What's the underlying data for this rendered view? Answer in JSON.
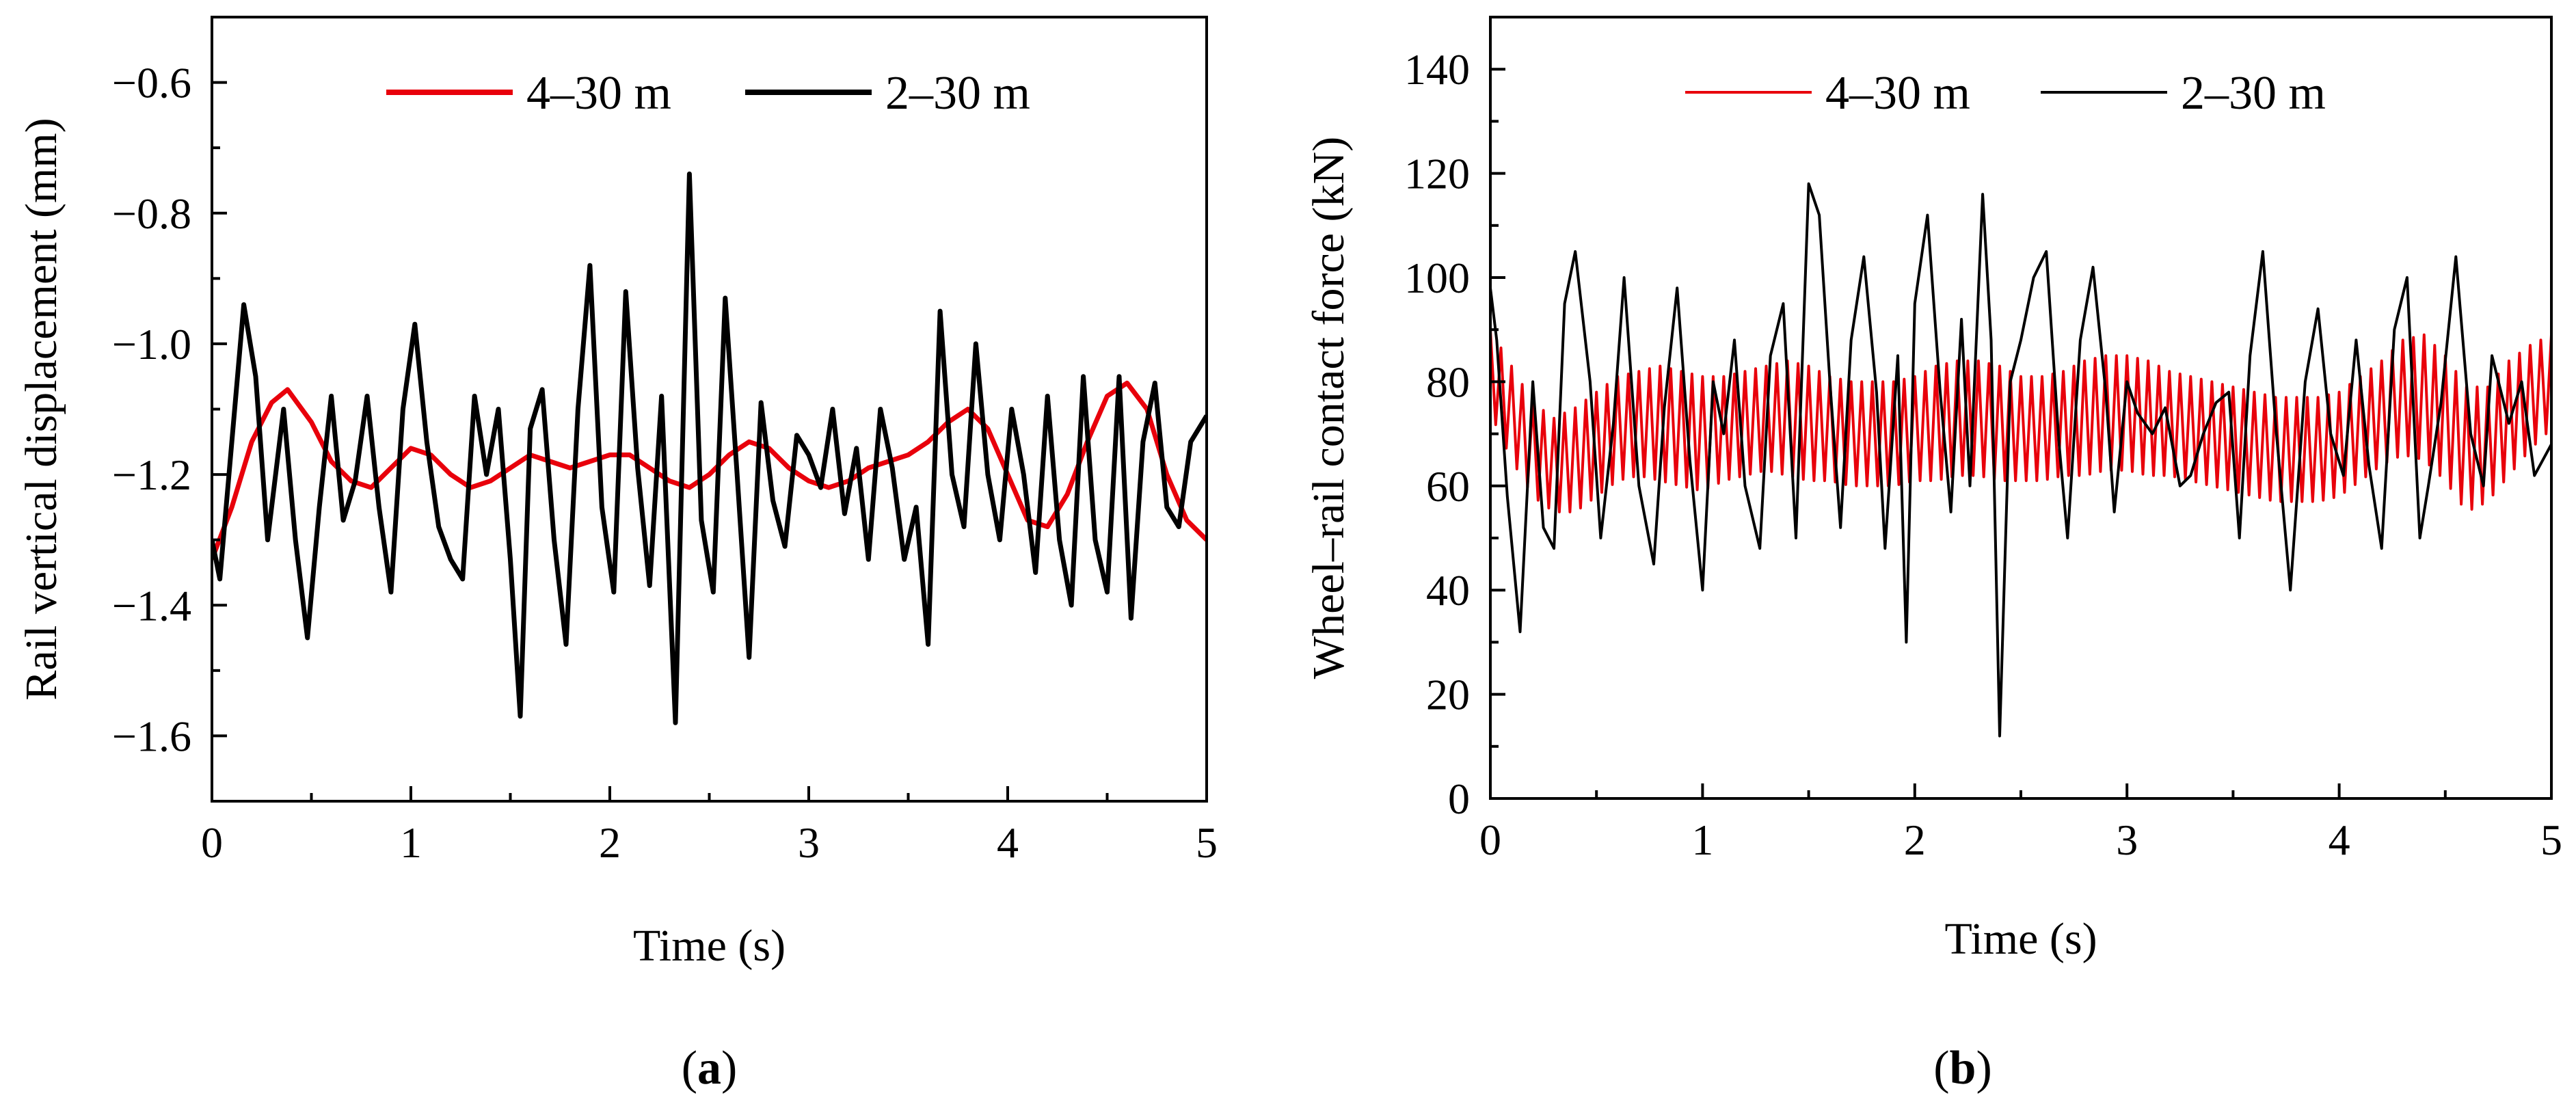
{
  "chart_data": [
    {
      "type": "line",
      "panel_label": "a",
      "xlabel": "Time (s)",
      "ylabel": "Rail vertical displacement (mm)",
      "xlim": [
        0,
        5
      ],
      "ylim": [
        -1.7,
        -0.5
      ],
      "xticks": [
        0,
        1,
        2,
        3,
        4,
        5
      ],
      "yticks": [
        -1.6,
        -1.4,
        -1.2,
        -1.0,
        -0.8,
        -0.6
      ],
      "ytick_labels": [
        "−1.6",
        "−1.4",
        "−1.2",
        "−1.0",
        "−0.8",
        "−0.6"
      ],
      "legend_position": "top-center",
      "series": [
        {
          "name": "4–30 m",
          "color": "#e8000b",
          "x": [
            0,
            0.1,
            0.2,
            0.3,
            0.38,
            0.5,
            0.6,
            0.7,
            0.8,
            0.9,
            1.0,
            1.1,
            1.2,
            1.3,
            1.4,
            1.5,
            1.6,
            1.7,
            1.8,
            1.9,
            2.0,
            2.1,
            2.2,
            2.3,
            2.4,
            2.5,
            2.6,
            2.7,
            2.8,
            2.9,
            3.0,
            3.1,
            3.2,
            3.3,
            3.4,
            3.5,
            3.6,
            3.7,
            3.8,
            3.9,
            4.0,
            4.1,
            4.2,
            4.3,
            4.4,
            4.5,
            4.6,
            4.7,
            4.8,
            4.9,
            5.0
          ],
          "y": [
            -1.33,
            -1.25,
            -1.15,
            -1.09,
            -1.07,
            -1.12,
            -1.18,
            -1.21,
            -1.22,
            -1.19,
            -1.16,
            -1.17,
            -1.2,
            -1.22,
            -1.21,
            -1.19,
            -1.17,
            -1.18,
            -1.19,
            -1.18,
            -1.17,
            -1.17,
            -1.19,
            -1.21,
            -1.22,
            -1.2,
            -1.17,
            -1.15,
            -1.16,
            -1.19,
            -1.21,
            -1.22,
            -1.21,
            -1.19,
            -1.18,
            -1.17,
            -1.15,
            -1.12,
            -1.1,
            -1.13,
            -1.2,
            -1.27,
            -1.28,
            -1.23,
            -1.15,
            -1.08,
            -1.06,
            -1.1,
            -1.2,
            -1.27,
            -1.3
          ]
        },
        {
          "name": "2–30 m",
          "color": "#000000",
          "x": [
            0,
            0.04,
            0.1,
            0.16,
            0.22,
            0.28,
            0.36,
            0.42,
            0.48,
            0.54,
            0.6,
            0.66,
            0.72,
            0.78,
            0.84,
            0.9,
            0.96,
            1.02,
            1.08,
            1.14,
            1.2,
            1.26,
            1.32,
            1.38,
            1.44,
            1.5,
            1.55,
            1.6,
            1.66,
            1.72,
            1.78,
            1.84,
            1.9,
            1.96,
            2.02,
            2.08,
            2.14,
            2.2,
            2.26,
            2.33,
            2.4,
            2.46,
            2.52,
            2.58,
            2.64,
            2.7,
            2.76,
            2.82,
            2.88,
            2.94,
            3.0,
            3.06,
            3.12,
            3.18,
            3.24,
            3.3,
            3.36,
            3.42,
            3.48,
            3.54,
            3.6,
            3.66,
            3.72,
            3.78,
            3.84,
            3.9,
            3.96,
            4.02,
            4.08,
            4.14,
            4.2,
            4.26,
            4.32,
            4.38,
            4.44,
            4.5,
            4.56,
            4.62,
            4.68,
            4.74,
            4.8,
            4.86,
            4.92,
            5.0
          ],
          "y": [
            -1.3,
            -1.36,
            -1.15,
            -0.94,
            -1.05,
            -1.3,
            -1.1,
            -1.3,
            -1.45,
            -1.25,
            -1.08,
            -1.27,
            -1.21,
            -1.08,
            -1.25,
            -1.38,
            -1.1,
            -0.97,
            -1.15,
            -1.28,
            -1.33,
            -1.36,
            -1.08,
            -1.2,
            -1.1,
            -1.33,
            -1.57,
            -1.13,
            -1.07,
            -1.3,
            -1.46,
            -1.1,
            -0.88,
            -1.25,
            -1.38,
            -0.92,
            -1.19,
            -1.37,
            -1.08,
            -1.58,
            -0.74,
            -1.27,
            -1.38,
            -0.93,
            -1.2,
            -1.48,
            -1.09,
            -1.24,
            -1.31,
            -1.14,
            -1.17,
            -1.22,
            -1.1,
            -1.26,
            -1.16,
            -1.33,
            -1.1,
            -1.19,
            -1.33,
            -1.25,
            -1.46,
            -0.95,
            -1.2,
            -1.28,
            -1.0,
            -1.2,
            -1.3,
            -1.1,
            -1.2,
            -1.35,
            -1.08,
            -1.3,
            -1.4,
            -1.05,
            -1.3,
            -1.38,
            -1.05,
            -1.42,
            -1.15,
            -1.06,
            -1.25,
            -1.28,
            -1.15,
            -1.11
          ]
        }
      ]
    },
    {
      "type": "line",
      "panel_label": "b",
      "xlabel": "Time (s)",
      "ylabel": "Wheel–rail contact force (kN)",
      "xlim": [
        0,
        5
      ],
      "ylim": [
        0,
        150
      ],
      "xticks": [
        0,
        1,
        2,
        3,
        4,
        5
      ],
      "yticks": [
        0,
        20,
        40,
        60,
        80,
        100,
        120,
        140
      ],
      "ytick_labels": [
        "0",
        "20",
        "40",
        "60",
        "80",
        "100",
        "120",
        "140"
      ],
      "legend_position": "top-center",
      "series": [
        {
          "name": "4–30 m",
          "color": "#e8000b",
          "x": [
            0,
            0.1,
            0.2,
            0.3,
            0.4,
            0.5,
            0.6,
            0.7,
            0.8,
            0.9,
            1.0,
            1.1,
            1.2,
            1.3,
            1.4,
            1.5,
            1.6,
            1.7,
            1.8,
            1.9,
            2.0,
            2.1,
            2.2,
            2.3,
            2.4,
            2.5,
            2.6,
            2.7,
            2.8,
            2.9,
            3.0,
            3.1,
            3.2,
            3.3,
            3.4,
            3.5,
            3.6,
            3.7,
            3.8,
            3.9,
            4.0,
            4.1,
            4.2,
            4.3,
            4.4,
            4.5,
            4.6,
            4.7,
            4.8,
            4.9,
            5.0
          ],
          "center": [
            82,
            74,
            67,
            64,
            65,
            68,
            71,
            72,
            72,
            71,
            70,
            71,
            72,
            73,
            73,
            72,
            71,
            70,
            70,
            70,
            71,
            72,
            73,
            73,
            72,
            71,
            71,
            72,
            73,
            74,
            74,
            73,
            72,
            71,
            70,
            69,
            68,
            67,
            67,
            67,
            68,
            71,
            74,
            77,
            77,
            73,
            67,
            68,
            73,
            77,
            80
          ],
          "amplitude": [
            8,
            9,
            9,
            9,
            10,
            10,
            10,
            10,
            11,
            11,
            11,
            10,
            10,
            10,
            11,
            11,
            10,
            10,
            10,
            10,
            10,
            11,
            11,
            11,
            11,
            10,
            10,
            10,
            11,
            11,
            11,
            11,
            10,
            10,
            10,
            10,
            10,
            10,
            10,
            10,
            10,
            10,
            10,
            11,
            12,
            12,
            12,
            11,
            11,
            10,
            9
          ],
          "oscillation_period": 0.05
        },
        {
          "name": "2–30 m",
          "color": "#000000",
          "x": [
            0,
            0.03,
            0.08,
            0.14,
            0.2,
            0.25,
            0.3,
            0.35,
            0.4,
            0.47,
            0.52,
            0.58,
            0.63,
            0.7,
            0.77,
            0.82,
            0.88,
            0.94,
            1.0,
            1.05,
            1.1,
            1.15,
            1.2,
            1.27,
            1.32,
            1.38,
            1.44,
            1.5,
            1.55,
            1.6,
            1.65,
            1.7,
            1.76,
            1.82,
            1.86,
            1.92,
            1.96,
            2.0,
            2.06,
            2.12,
            2.17,
            2.22,
            2.26,
            2.32,
            2.36,
            2.4,
            2.45,
            2.5,
            2.56,
            2.62,
            2.68,
            2.72,
            2.78,
            2.84,
            2.9,
            2.94,
            3.0,
            3.05,
            3.12,
            3.18,
            3.25,
            3.3,
            3.36,
            3.42,
            3.48,
            3.53,
            3.58,
            3.64,
            3.7,
            3.77,
            3.84,
            3.9,
            3.96,
            4.02,
            4.08,
            4.14,
            4.2,
            4.26,
            4.32,
            4.38,
            4.42,
            4.48,
            4.55,
            4.62,
            4.68,
            4.72,
            4.8,
            4.86,
            4.92,
            5.0
          ],
          "y": [
            98,
            88,
            58,
            32,
            80,
            52,
            48,
            95,
            105,
            80,
            50,
            72,
            100,
            60,
            45,
            75,
            98,
            65,
            40,
            80,
            70,
            88,
            60,
            48,
            85,
            95,
            50,
            118,
            112,
            80,
            52,
            88,
            104,
            78,
            48,
            85,
            30,
            95,
            112,
            78,
            55,
            92,
            60,
            116,
            88,
            12,
            80,
            88,
            100,
            105,
            68,
            50,
            88,
            102,
            78,
            55,
            80,
            74,
            70,
            75,
            60,
            62,
            70,
            76,
            78,
            50,
            85,
            105,
            72,
            40,
            80,
            94,
            70,
            62,
            88,
            64,
            48,
            90,
            100,
            50,
            60,
            76,
            104,
            70,
            60,
            85,
            72,
            80,
            62,
            68
          ]
        }
      ]
    }
  ]
}
